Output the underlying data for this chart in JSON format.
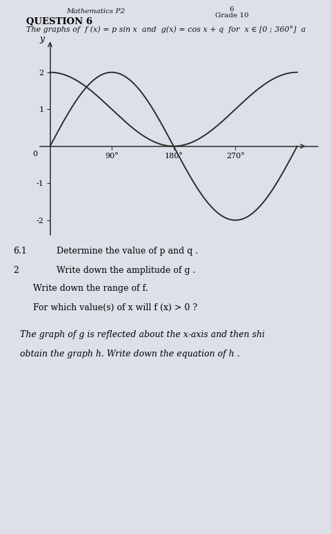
{
  "header_left": "Mathematics P2",
  "header_right_top": "6",
  "header_right_bot": "Grade 10",
  "question_title": "QUESTION 6",
  "question_text": "The graphs of  f (x) = p sin x  and  g(x) = cos x + q  for  x ∈ [0 ; 360°]  a",
  "p": 2,
  "q": 1,
  "x_min": 0,
  "x_max": 360,
  "y_min": -2.4,
  "y_max": 2.8,
  "x_ticks": [
    90,
    180,
    270
  ],
  "x_tick_labels": [
    "90°",
    "180°",
    "270°"
  ],
  "y_ticks": [
    -2,
    -1,
    1,
    2
  ],
  "y_tick_labels": [
    "-2",
    "-1",
    "1",
    "2"
  ],
  "curve_color": "#2a2a2a",
  "axis_color": "#2a2a2a",
  "bg_color": "#dde0e8",
  "items": [
    {
      "num": "6.1",
      "indent": 0.17,
      "text": "Determine the value of p and q.",
      "italic": false
    },
    {
      "num": "2",
      "indent": 0.17,
      "text": "Write down the amplitude of g.",
      "italic": false
    },
    {
      "num": "",
      "indent": 0.12,
      "text": "Write down the range of f.",
      "italic": false
    },
    {
      "num": "",
      "indent": 0.12,
      "text": "For which value(s) of x will f (x) > 0 ?",
      "italic": false
    },
    {
      "num": "",
      "indent": 0.06,
      "text": "The graph of g is reflected about the x-axis and then shi",
      "italic": true,
      "text2": "obtain the graph h. Write down the equation of h.",
      "italic2": true
    }
  ]
}
